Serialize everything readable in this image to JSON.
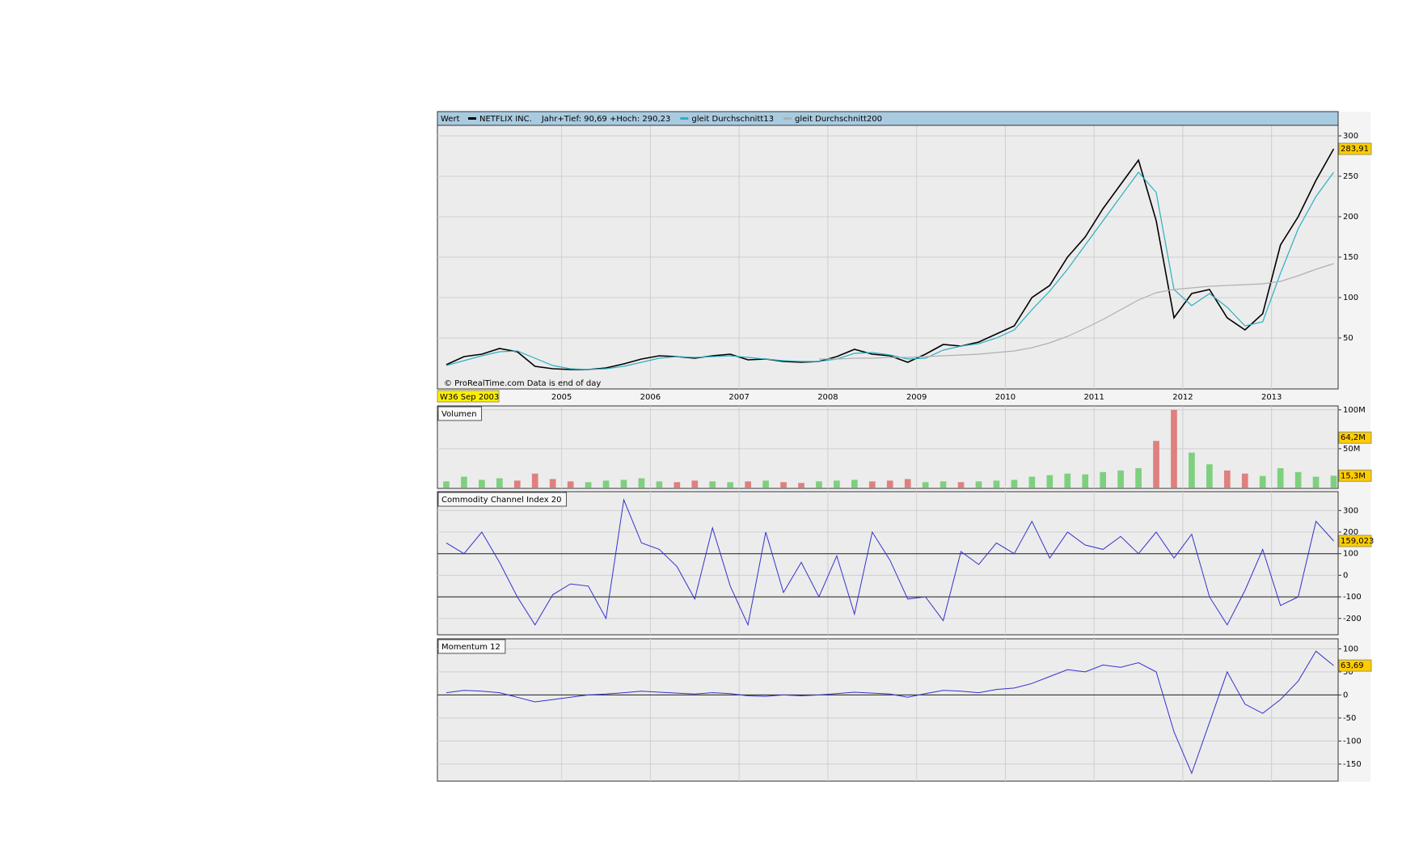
{
  "chart_data": [
    {
      "type": "line",
      "title": "Wert",
      "subtitle": "Jahr+Tief: 90,69 +Hoch: 290,23",
      "footer": "© ProRealTime.com Data is end of day",
      "start_label": "W36 Sep 2003",
      "x": [
        2003.7,
        2003.9,
        2004.1,
        2004.3,
        2004.5,
        2004.7,
        2004.9,
        2005.1,
        2005.3,
        2005.5,
        2005.7,
        2005.9,
        2006.1,
        2006.3,
        2006.5,
        2006.7,
        2006.9,
        2007.1,
        2007.3,
        2007.5,
        2007.7,
        2007.9,
        2008.1,
        2008.3,
        2008.5,
        2008.7,
        2008.9,
        2009.1,
        2009.3,
        2009.5,
        2009.7,
        2009.9,
        2010.1,
        2010.3,
        2010.5,
        2010.7,
        2010.9,
        2011.1,
        2011.3,
        2011.5,
        2011.7,
        2011.9,
        2012.1,
        2012.3,
        2012.5,
        2012.7,
        2012.9,
        2013.1,
        2013.3,
        2013.5,
        2013.7
      ],
      "xlim": [
        2003.6,
        2013.75
      ],
      "xticks": [
        2005,
        2006,
        2007,
        2008,
        2009,
        2010,
        2011,
        2012,
        2013
      ],
      "ylim": [
        3,
        311
      ],
      "yticks": [
        50,
        100,
        150,
        200,
        250,
        300
      ],
      "grid": true,
      "series": [
        {
          "name": "NETFLIX INC.",
          "color": "#000000",
          "values": [
            17,
            27,
            30,
            37,
            33,
            15,
            12,
            11,
            11,
            13,
            18,
            24,
            28,
            27,
            25,
            28,
            30,
            23,
            24,
            21,
            20,
            21,
            27,
            36,
            30,
            28,
            20,
            30,
            42,
            40,
            45,
            55,
            65,
            100,
            115,
            150,
            175,
            210,
            240,
            270,
            195,
            75,
            105,
            110,
            75,
            60,
            80,
            165,
            200,
            245,
            283.91
          ]
        },
        {
          "name": "gleit Durchschnitt13",
          "color": "#2ab0c0",
          "values": [
            16,
            22,
            28,
            33,
            34,
            25,
            16,
            12,
            11,
            12,
            15,
            20,
            25,
            27,
            26,
            27,
            28,
            26,
            24,
            22,
            21,
            21,
            24,
            31,
            32,
            29,
            24,
            25,
            35,
            40,
            43,
            50,
            60,
            85,
            108,
            135,
            165,
            195,
            225,
            255,
            230,
            110,
            90,
            105,
            88,
            65,
            70,
            130,
            185,
            225,
            255
          ]
        },
        {
          "name": "gleit Durchschnitt200",
          "color": "#b0b0b0",
          "values": [
            null,
            null,
            null,
            null,
            null,
            null,
            null,
            null,
            null,
            null,
            null,
            null,
            null,
            null,
            null,
            null,
            null,
            null,
            null,
            null,
            null,
            24,
            24,
            25,
            25,
            26,
            26,
            27,
            28,
            29,
            30,
            32,
            34,
            38,
            44,
            52,
            62,
            73,
            85,
            97,
            106,
            110,
            112,
            114,
            115,
            116,
            117,
            120,
            127,
            135,
            142
          ]
        }
      ],
      "tags": [
        {
          "value": 283.91,
          "label": "283,91"
        }
      ]
    },
    {
      "type": "bar",
      "title": "Volumen",
      "up_color": "#7ed07e",
      "down_color": "#e07f7f",
      "values": [
        8,
        14,
        10,
        12,
        9,
        18,
        11,
        8,
        7,
        9,
        10,
        12,
        8,
        7,
        9,
        8,
        7,
        8,
        9,
        7,
        6,
        8,
        9,
        10,
        8,
        9,
        11,
        7,
        8,
        7,
        8,
        9,
        10,
        14,
        16,
        18,
        17,
        20,
        22,
        25,
        60,
        100,
        45,
        30,
        22,
        18,
        15,
        25,
        20,
        14,
        15.3
      ],
      "ylim": [
        0,
        105
      ],
      "yticks": [
        {
          "value": 50,
          "label": "50M"
        },
        {
          "value": 100,
          "label": "100M"
        }
      ],
      "grid": true,
      "tags": [
        {
          "value": 64.2,
          "label": "64,2M"
        },
        {
          "value": 15.3,
          "label": "15,3M"
        }
      ]
    },
    {
      "type": "line",
      "title": "Commodity Channel Index 20",
      "color": "#3333cc",
      "values": [
        150,
        100,
        200,
        60,
        -100,
        -230,
        -90,
        -40,
        -50,
        -200,
        350,
        150,
        120,
        40,
        -110,
        220,
        -50,
        -230,
        200,
        -80,
        60,
        -100,
        90,
        -180,
        200,
        70,
        -110,
        -100,
        -210,
        110,
        50,
        150,
        100,
        250,
        80,
        200,
        140,
        120,
        180,
        100,
        200,
        80,
        190,
        -100,
        -230,
        -70,
        120,
        -140,
        -100,
        250,
        159.023
      ],
      "ylim": [
        -272,
        380
      ],
      "yticks": [
        -200,
        -100,
        0,
        100,
        200,
        300
      ],
      "levels": [
        100,
        -100
      ],
      "grid": true,
      "tags": [
        {
          "value": 159.023,
          "label": "159,023"
        }
      ]
    },
    {
      "type": "line",
      "title": "Momentum 12",
      "color": "#3333cc",
      "values": [
        5,
        10,
        8,
        5,
        -5,
        -15,
        -10,
        -5,
        0,
        2,
        5,
        8,
        6,
        4,
        2,
        5,
        3,
        -2,
        -3,
        0,
        -2,
        0,
        3,
        6,
        4,
        2,
        -5,
        3,
        10,
        8,
        5,
        12,
        15,
        25,
        40,
        55,
        50,
        65,
        60,
        70,
        50,
        -80,
        -170,
        -60,
        50,
        -20,
        -40,
        -10,
        30,
        95,
        63.69
      ],
      "ylim": [
        -187,
        120
      ],
      "yticks": [
        -150,
        -100,
        -50,
        0,
        50,
        100
      ],
      "levels": [
        0
      ],
      "grid": true,
      "tags": [
        {
          "value": 63.69,
          "label": "63,69"
        }
      ]
    }
  ]
}
